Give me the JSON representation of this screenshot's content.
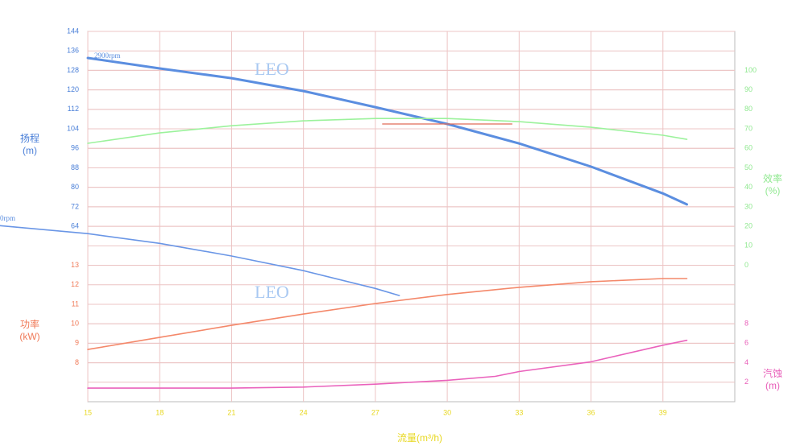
{
  "chart_data": [
    {
      "type": "line",
      "y_label": [
        "扬程",
        "(m)"
      ],
      "axis_side": "left",
      "tick_color": "#4a7fd8",
      "x_label": "流量(m³/h)",
      "xlim": [
        15,
        42
      ],
      "xticks": [
        15,
        18,
        21,
        24,
        27,
        30,
        33,
        36,
        39
      ],
      "x_color": "#e8d820",
      "grid": true,
      "ylim": [
        -8,
        144
      ],
      "yticks": [
        64,
        72,
        80,
        88,
        96,
        104,
        112,
        120,
        128,
        136,
        144
      ],
      "annotations": [
        "2900rpm",
        "0rpm",
        "LEO",
        "LEO"
      ],
      "series": [
        {
          "color": "#5b8ee0",
          "width": 3,
          "x": [
            15,
            18,
            21,
            24,
            27,
            30,
            33,
            36,
            39,
            40
          ],
          "values": [
            133.1,
            128.8,
            124.8,
            119.5,
            112.9,
            106,
            98,
            88.5,
            77.5,
            73
          ]
        },
        {
          "color": "#6a96e6",
          "width": 1.6,
          "x": [
            11.3,
            15,
            18,
            21,
            24,
            27,
            28
          ],
          "values": [
            64.3,
            61,
            57,
            51.8,
            45.8,
            38.5,
            35.6
          ]
        },
        {
          "color": "#e06a58",
          "width": 1.2,
          "x": [
            27.3,
            32.7
          ],
          "values": [
            106,
            106
          ]
        }
      ]
    },
    {
      "type": "line",
      "y_label": [
        "效率",
        "(%)"
      ],
      "axis_side": "right",
      "tick_color": "#8fe88f",
      "ylim": [
        -70,
        120
      ],
      "yticks": [
        0,
        10,
        20,
        30,
        40,
        50,
        60,
        70,
        80,
        90,
        100
      ],
      "series": [
        {
          "color": "#9cf29c",
          "width": 1.6,
          "x": [
            15,
            18,
            21,
            24,
            27,
            30,
            33,
            36,
            39,
            40
          ],
          "values": [
            62.6,
            67.9,
            71.6,
            74.1,
            75.3,
            75.3,
            73.7,
            70.8,
            66.7,
            64.6
          ]
        }
      ]
    },
    {
      "type": "line",
      "y_label": [
        "功率",
        "(kW)"
      ],
      "axis_side": "left",
      "tick_color": "#f07a58",
      "ylim": [
        6,
        25
      ],
      "yticks": [
        8,
        9,
        10,
        11,
        12,
        13
      ],
      "series": [
        {
          "color": "#f4886a",
          "width": 1.6,
          "x": [
            15,
            18,
            21,
            24,
            27,
            30,
            33,
            36,
            39,
            40
          ],
          "values": [
            8.68,
            9.3,
            9.92,
            10.5,
            11.04,
            11.5,
            11.87,
            12.16,
            12.32,
            12.32
          ]
        }
      ]
    },
    {
      "type": "line",
      "y_label": [
        "汽蚀",
        "(m)"
      ],
      "axis_side": "right",
      "tick_color": "#e85cb8",
      "ylim": [
        0,
        38
      ],
      "yticks": [
        2,
        4,
        6,
        8
      ],
      "series": [
        {
          "color": "#ea62bc",
          "width": 1.6,
          "x": [
            15,
            18,
            21,
            24,
            27,
            30,
            32,
            33,
            36,
            39,
            40
          ],
          "values": [
            1.4,
            1.4,
            1.4,
            1.5,
            1.8,
            2.2,
            2.6,
            3.1,
            4.1,
            5.8,
            6.3
          ]
        }
      ]
    }
  ]
}
